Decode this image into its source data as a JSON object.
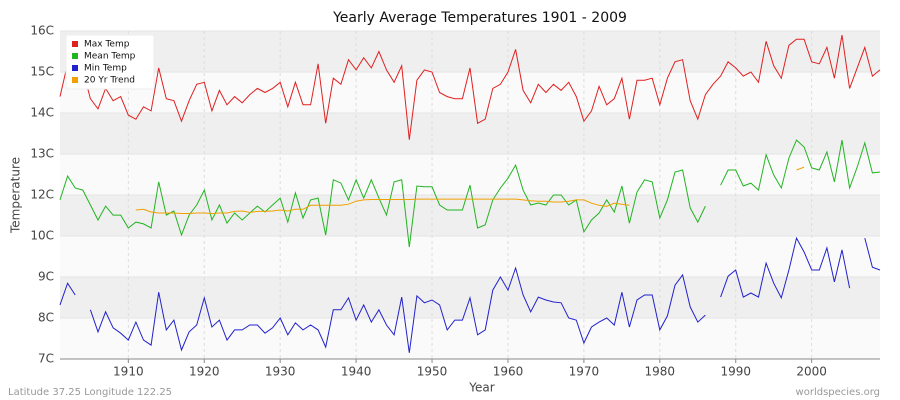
{
  "chart_data": {
    "type": "line",
    "title": "Yearly Average Temperatures 1901 - 2009",
    "x_label": "Year",
    "y_label": "Temperature",
    "footer_left": "Latitude 37.25 Longitude 122.25",
    "footer_right": "worldspecies.org",
    "legend": "top-left",
    "grid": true,
    "x": [
      1901,
      1902,
      1903,
      1904,
      1905,
      1906,
      1907,
      1908,
      1909,
      1910,
      1911,
      1912,
      1913,
      1914,
      1915,
      1916,
      1917,
      1918,
      1919,
      1920,
      1921,
      1922,
      1923,
      1924,
      1925,
      1926,
      1927,
      1928,
      1929,
      1930,
      1931,
      1932,
      1933,
      1934,
      1935,
      1936,
      1937,
      1938,
      1939,
      1940,
      1941,
      1942,
      1943,
      1944,
      1945,
      1946,
      1947,
      1948,
      1949,
      1950,
      1951,
      1952,
      1953,
      1954,
      1955,
      1956,
      1957,
      1958,
      1959,
      1960,
      1961,
      1962,
      1963,
      1964,
      1965,
      1966,
      1967,
      1968,
      1969,
      1970,
      1971,
      1972,
      1973,
      1974,
      1975,
      1976,
      1977,
      1978,
      1979,
      1980,
      1981,
      1982,
      1983,
      1984,
      1985,
      1986,
      1987,
      1988,
      1989,
      1990,
      1991,
      1992,
      1993,
      1994,
      1995,
      1996,
      1997,
      1998,
      1999,
      2000,
      2001,
      2002,
      2003,
      2004,
      2005,
      2006,
      2007,
      2008,
      2009
    ],
    "xlim": [
      1901,
      2009
    ],
    "xticks": [
      1910,
      1920,
      1930,
      1940,
      1950,
      1960,
      1970,
      1980,
      1990,
      2000
    ],
    "ylim": [
      7,
      16
    ],
    "yticks": [
      {
        "value": 7,
        "label": "7C"
      },
      {
        "value": 8,
        "label": "8C"
      },
      {
        "value": 9,
        "label": "9C"
      },
      {
        "value": 10,
        "label": "10C"
      },
      {
        "value": 12,
        "label": "12C"
      },
      {
        "value": 13,
        "label": "13C"
      },
      {
        "value": 14,
        "label": "14C"
      },
      {
        "value": 15,
        "label": "15C"
      },
      {
        "value": 16,
        "label": "16C"
      }
    ],
    "series": [
      {
        "name": "Max Temp",
        "color": "#e02020",
        "values": [
          14.4,
          15.2,
          15.4,
          15.05,
          14.35,
          14.1,
          14.6,
          14.3,
          14.4,
          13.95,
          13.85,
          14.15,
          14.05,
          15.1,
          14.35,
          14.3,
          13.8,
          14.3,
          14.7,
          14.75,
          14.05,
          14.55,
          14.2,
          14.4,
          14.25,
          14.45,
          14.6,
          14.5,
          14.6,
          14.75,
          14.15,
          14.75,
          14.2,
          14.2,
          15.2,
          13.75,
          14.85,
          14.7,
          15.3,
          15.05,
          15.35,
          15.1,
          15.5,
          15.05,
          14.75,
          15.15,
          13.35,
          14.8,
          15.05,
          15.0,
          14.5,
          14.4,
          14.35,
          14.35,
          15.1,
          13.75,
          13.85,
          14.6,
          14.7,
          15.0,
          15.55,
          14.55,
          14.25,
          14.7,
          14.5,
          14.7,
          14.55,
          14.75,
          14.4,
          13.8,
          14.05,
          14.65,
          14.2,
          14.35,
          14.85,
          13.85,
          14.8,
          14.8,
          14.85,
          14.2,
          14.85,
          15.25,
          15.3,
          14.3,
          13.85,
          14.45,
          14.7,
          14.9,
          15.25,
          15.1,
          14.9,
          15.0,
          14.75,
          15.75,
          15.15,
          14.85,
          15.65,
          15.8,
          15.8,
          15.25,
          15.2,
          15.6,
          14.85,
          15.9,
          14.6,
          15.1,
          15.6,
          14.9,
          15.05
        ]
      },
      {
        "name": "Mean Temp",
        "color": "#22b422",
        "values": [
          11.76,
          12.46,
          12.17,
          12.12,
          11.51,
          10.78,
          11.46,
          11.02,
          11.02,
          10.39,
          10.68,
          10.59,
          10.39,
          12.32,
          11.02,
          11.22,
          10.05,
          11.02,
          11.51,
          12.12,
          10.78,
          11.51,
          10.63,
          11.12,
          10.78,
          11.12,
          11.46,
          11.17,
          11.51,
          11.85,
          10.68,
          12.05,
          10.88,
          11.76,
          11.85,
          10.05,
          12.37,
          12.29,
          11.76,
          12.37,
          11.85,
          12.37,
          11.85,
          11.02,
          12.32,
          12.37,
          9.73,
          12.22,
          12.2,
          12.2,
          11.51,
          11.27,
          11.27,
          11.27,
          12.24,
          10.39,
          10.54,
          11.76,
          12.17,
          12.41,
          12.73,
          12.12,
          11.51,
          11.61,
          11.51,
          12.0,
          12.0,
          11.51,
          11.76,
          10.2,
          10.78,
          11.12,
          11.76,
          11.17,
          12.22,
          10.63,
          12.07,
          12.37,
          12.32,
          10.88,
          11.76,
          12.56,
          12.61,
          11.37,
          10.68,
          11.46,
          null,
          12.24,
          12.61,
          12.61,
          12.22,
          12.29,
          12.12,
          12.98,
          12.49,
          12.17,
          12.9,
          13.34,
          13.17,
          12.66,
          12.61,
          13.05,
          12.32,
          13.34,
          12.17,
          12.68,
          13.27,
          12.54,
          12.56
        ]
      },
      {
        "name": "Min Temp",
        "color": "#2222cc",
        "values": [
          8.32,
          8.85,
          8.56,
          null,
          8.2,
          7.66,
          8.15,
          7.76,
          7.63,
          7.46,
          7.9,
          7.46,
          7.34,
          8.63,
          7.71,
          7.95,
          7.22,
          7.66,
          7.83,
          8.49,
          7.78,
          7.95,
          7.46,
          7.71,
          7.71,
          7.83,
          7.83,
          7.63,
          7.76,
          8.0,
          7.59,
          7.88,
          7.71,
          7.83,
          7.71,
          7.29,
          8.2,
          8.2,
          8.49,
          7.95,
          8.32,
          7.9,
          8.2,
          7.83,
          7.59,
          8.51,
          7.15,
          8.54,
          8.37,
          8.44,
          8.32,
          7.71,
          7.95,
          7.95,
          8.49,
          7.59,
          7.71,
          8.68,
          9.0,
          8.68,
          9.22,
          8.56,
          8.15,
          8.51,
          8.44,
          8.39,
          8.37,
          8.0,
          7.95,
          7.39,
          7.78,
          7.9,
          8.0,
          7.83,
          8.63,
          7.78,
          8.44,
          8.56,
          8.56,
          7.71,
          8.05,
          8.8,
          9.05,
          8.27,
          7.9,
          8.07,
          null,
          8.51,
          9.02,
          9.17,
          8.51,
          8.61,
          8.51,
          9.34,
          8.85,
          8.49,
          9.17,
          9.95,
          9.61,
          9.17,
          9.17,
          9.71,
          8.88,
          9.66,
          8.73,
          null,
          9.95,
          9.24,
          9.17
        ]
      },
      {
        "name": "20 Yr Trend",
        "color": "#f0a000",
        "values": [
          null,
          null,
          null,
          null,
          null,
          null,
          null,
          null,
          null,
          null,
          11.27,
          11.3,
          11.17,
          11.12,
          11.12,
          11.12,
          11.1,
          11.1,
          11.12,
          11.12,
          11.1,
          11.12,
          11.12,
          11.2,
          11.22,
          11.15,
          11.2,
          11.2,
          11.22,
          11.27,
          11.22,
          11.3,
          11.3,
          11.5,
          11.5,
          11.5,
          11.5,
          11.5,
          11.55,
          11.7,
          11.76,
          11.78,
          11.78,
          11.78,
          11.78,
          11.78,
          11.78,
          11.8,
          11.8,
          11.8,
          11.8,
          11.8,
          11.8,
          11.8,
          11.8,
          11.8,
          11.8,
          11.8,
          11.8,
          11.8,
          11.8,
          11.76,
          11.72,
          11.7,
          11.7,
          11.66,
          11.66,
          11.7,
          11.76,
          11.76,
          11.6,
          11.5,
          11.45,
          11.6,
          11.55,
          11.5,
          null,
          null,
          null,
          null,
          null,
          null,
          null,
          null,
          null,
          null,
          null,
          null,
          null,
          null,
          null,
          null,
          null,
          null,
          null,
          null,
          null,
          12.61,
          12.68,
          null,
          null,
          null,
          null,
          null,
          null,
          null,
          null,
          null,
          null
        ]
      }
    ]
  }
}
